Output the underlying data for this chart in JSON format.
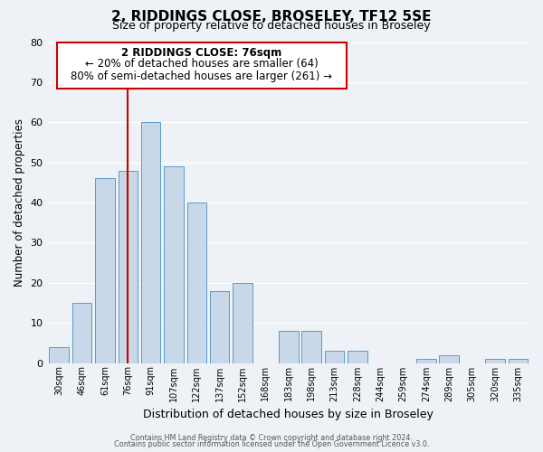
{
  "title": "2, RIDDINGS CLOSE, BROSELEY, TF12 5SE",
  "subtitle": "Size of property relative to detached houses in Broseley",
  "xlabel": "Distribution of detached houses by size in Broseley",
  "ylabel": "Number of detached properties",
  "bar_color": "#c8d8e8",
  "bar_edge_color": "#5a9ac8",
  "categories": [
    "30sqm",
    "46sqm",
    "61sqm",
    "76sqm",
    "91sqm",
    "107sqm",
    "122sqm",
    "137sqm",
    "152sqm",
    "168sqm",
    "183sqm",
    "198sqm",
    "213sqm",
    "228sqm",
    "244sqm",
    "259sqm",
    "274sqm",
    "289sqm",
    "305sqm",
    "320sqm",
    "335sqm"
  ],
  "values": [
    4,
    15,
    46,
    48,
    60,
    49,
    40,
    18,
    20,
    0,
    8,
    8,
    3,
    3,
    0,
    0,
    1,
    2,
    0,
    1,
    1
  ],
  "vline_x": 3,
  "vline_color": "#cc0000",
  "ylim": [
    0,
    80
  ],
  "yticks": [
    0,
    10,
    20,
    30,
    40,
    50,
    60,
    70,
    80
  ],
  "annotation_title": "2 RIDDINGS CLOSE: 76sqm",
  "annotation_line1": "← 20% of detached houses are smaller (64)",
  "annotation_line2": "80% of semi-detached houses are larger (261) →",
  "annotation_box_color": "#ffffff",
  "annotation_box_edge": "#cc0000",
  "footer1": "Contains HM Land Registry data © Crown copyright and database right 2024.",
  "footer2": "Contains public sector information licensed under the Open Government Licence v3.0.",
  "background_color": "#eef2f7",
  "grid_color": "#ffffff"
}
